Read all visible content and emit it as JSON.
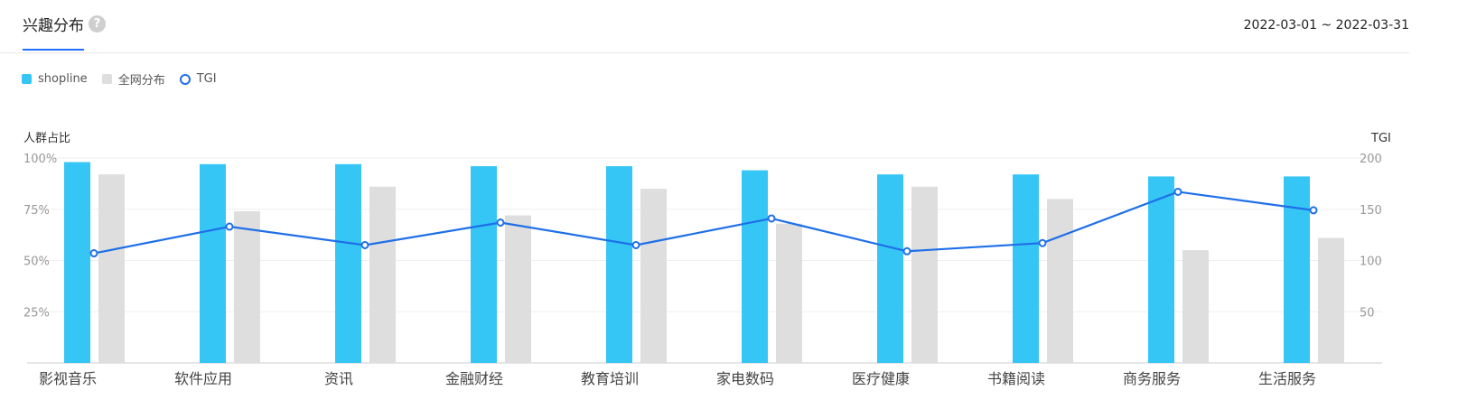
{
  "header": {
    "tab_label": "兴趣分布",
    "help_icon": "question-circle-icon",
    "date_range": "2022-03-01 ~ 2022-03-31"
  },
  "colors": {
    "shopline": "#35c6f6",
    "network": "#dedede",
    "tgi": "#1e6fe8",
    "accent": "#1e6fff"
  },
  "chart_data": {
    "type": "bar",
    "categories": [
      "影视音乐",
      "软件应用",
      "资讯",
      "金融财经",
      "教育培训",
      "家电数码",
      "医疗健康",
      "书籍阅读",
      "商务服务",
      "生活服务"
    ],
    "series": [
      {
        "name": "shopline",
        "kind": "bar",
        "axis": "left",
        "values": [
          98,
          97,
          97,
          96,
          96,
          94,
          92,
          92,
          91,
          91
        ]
      },
      {
        "name": "全网分布",
        "kind": "bar",
        "axis": "left",
        "values": [
          92,
          74,
          86,
          72,
          85,
          68,
          86,
          80,
          55,
          61
        ]
      },
      {
        "name": "TGI",
        "kind": "line",
        "axis": "right",
        "values": [
          107,
          133,
          115,
          137,
          115,
          141,
          109,
          117,
          167,
          149
        ]
      }
    ],
    "ylabel": "人群占比",
    "y2label": "TGI",
    "ylim": [
      0,
      100
    ],
    "y2lim": [
      0,
      200
    ],
    "yticks": [
      "25%",
      "50%",
      "75%",
      "100%"
    ],
    "y2ticks": [
      "50",
      "100",
      "150",
      "200"
    ],
    "legend": "top-left",
    "grid": true
  }
}
